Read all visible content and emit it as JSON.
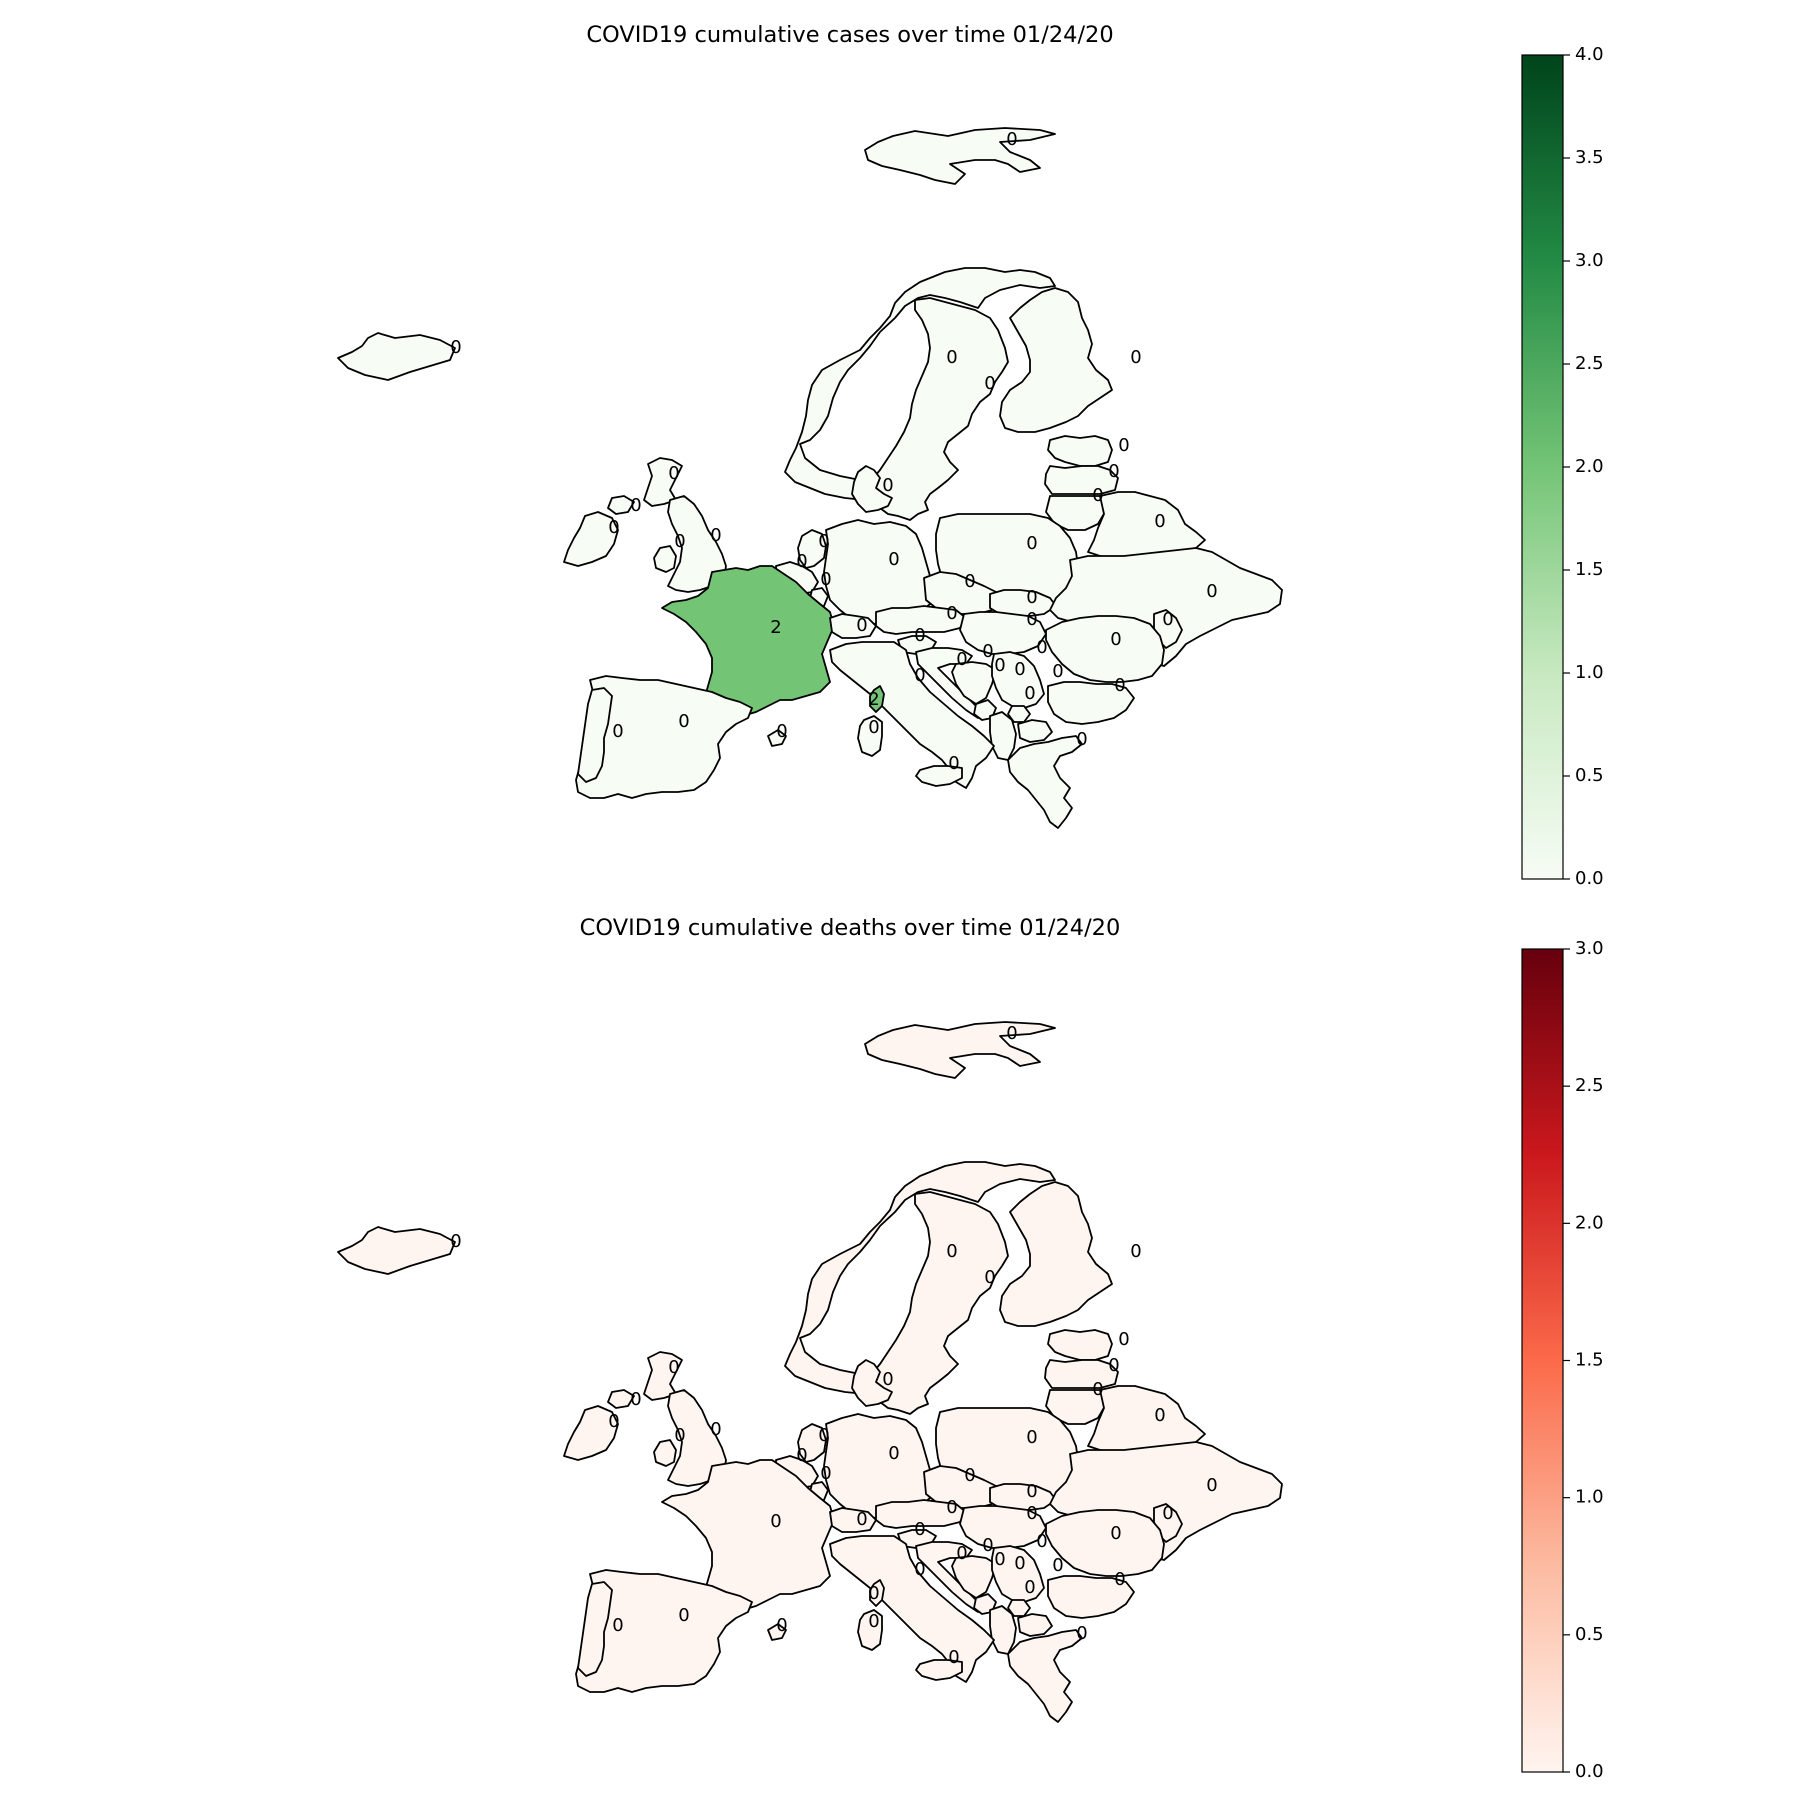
{
  "maps": [
    {
      "title": "COVID19 cumulative cases over time 01/24/20",
      "metric": "cases",
      "colorbar": {
        "min": 0.0,
        "max": 4.0,
        "ticks": [
          "0.0",
          "0.5",
          "1.0",
          "1.5",
          "2.0",
          "2.5",
          "3.0",
          "3.5",
          "4.0"
        ],
        "colors": [
          "#f7fcf5",
          "#c7e9c0",
          "#74c476",
          "#238b45",
          "#00441b"
        ]
      },
      "regions": [
        {
          "name": "Iceland",
          "value": 0
        },
        {
          "name": "Svalbard",
          "value": 0
        },
        {
          "name": "Norway",
          "value": 0
        },
        {
          "name": "Sweden",
          "value": 0
        },
        {
          "name": "Finland",
          "value": 0
        },
        {
          "name": "Estonia",
          "value": 0
        },
        {
          "name": "Latvia",
          "value": 0
        },
        {
          "name": "Lithuania",
          "value": 0
        },
        {
          "name": "Belarus",
          "value": 0
        },
        {
          "name": "Denmark",
          "value": 0
        },
        {
          "name": "Ireland",
          "value": 0
        },
        {
          "name": "Northern Ireland",
          "value": 0
        },
        {
          "name": "Scotland",
          "value": 0
        },
        {
          "name": "United Kingdom",
          "value": 0
        },
        {
          "name": "Wales",
          "value": 0
        },
        {
          "name": "Netherlands",
          "value": 0
        },
        {
          "name": "Belgium",
          "value": 0
        },
        {
          "name": "Luxembourg",
          "value": 0
        },
        {
          "name": "Germany",
          "value": 0
        },
        {
          "name": "Poland",
          "value": 0
        },
        {
          "name": "Czechia",
          "value": 0
        },
        {
          "name": "Slovakia",
          "value": 0
        },
        {
          "name": "Ukraine",
          "value": 0
        },
        {
          "name": "France",
          "value": 2
        },
        {
          "name": "Switzerland",
          "value": 0
        },
        {
          "name": "Austria",
          "value": 0
        },
        {
          "name": "Hungary",
          "value": 0
        },
        {
          "name": "Moldova",
          "value": 0
        },
        {
          "name": "Romania",
          "value": 0
        },
        {
          "name": "Slovenia",
          "value": 0
        },
        {
          "name": "Croatia",
          "value": 0
        },
        {
          "name": "Bosnia",
          "value": 0
        },
        {
          "name": "Serbia",
          "value": 0
        },
        {
          "name": "Montenegro",
          "value": 0
        },
        {
          "name": "Kosovo",
          "value": 0
        },
        {
          "name": "North Macedonia",
          "value": 0
        },
        {
          "name": "Albania",
          "value": 0
        },
        {
          "name": "Bulgaria",
          "value": 0
        },
        {
          "name": "Greece",
          "value": 0
        },
        {
          "name": "Italy",
          "value": 0
        },
        {
          "name": "Corsica",
          "value": 2
        },
        {
          "name": "Sardinia",
          "value": 0
        },
        {
          "name": "Sicily",
          "value": 0
        },
        {
          "name": "Spain",
          "value": 0
        },
        {
          "name": "Portugal",
          "value": 0
        },
        {
          "name": "Balearic Islands",
          "value": 0
        }
      ]
    },
    {
      "title": "COVID19 cumulative deaths over time 01/24/20",
      "metric": "deaths",
      "colorbar": {
        "min": 0.0,
        "max": 3.0,
        "ticks": [
          "0.0",
          "0.5",
          "1.0",
          "1.5",
          "2.0",
          "2.5",
          "3.0"
        ],
        "colors": [
          "#fff5f0",
          "#fcbba1",
          "#fb6a4a",
          "#cb181d",
          "#67000d"
        ]
      },
      "regions": [
        {
          "name": "Iceland",
          "value": 0
        },
        {
          "name": "Svalbard",
          "value": 0
        },
        {
          "name": "Norway",
          "value": 0
        },
        {
          "name": "Sweden",
          "value": 0
        },
        {
          "name": "Finland",
          "value": 0
        },
        {
          "name": "Estonia",
          "value": 0
        },
        {
          "name": "Latvia",
          "value": 0
        },
        {
          "name": "Lithuania",
          "value": 0
        },
        {
          "name": "Belarus",
          "value": 0
        },
        {
          "name": "Denmark",
          "value": 0
        },
        {
          "name": "Ireland",
          "value": 0
        },
        {
          "name": "Northern Ireland",
          "value": 0
        },
        {
          "name": "Scotland",
          "value": 0
        },
        {
          "name": "United Kingdom",
          "value": 0
        },
        {
          "name": "Wales",
          "value": 0
        },
        {
          "name": "Netherlands",
          "value": 0
        },
        {
          "name": "Belgium",
          "value": 0
        },
        {
          "name": "Luxembourg",
          "value": 0
        },
        {
          "name": "Germany",
          "value": 0
        },
        {
          "name": "Poland",
          "value": 0
        },
        {
          "name": "Czechia",
          "value": 0
        },
        {
          "name": "Slovakia",
          "value": 0
        },
        {
          "name": "Ukraine",
          "value": 0
        },
        {
          "name": "France",
          "value": 0
        },
        {
          "name": "Switzerland",
          "value": 0
        },
        {
          "name": "Austria",
          "value": 0
        },
        {
          "name": "Hungary",
          "value": 0
        },
        {
          "name": "Moldova",
          "value": 0
        },
        {
          "name": "Romania",
          "value": 0
        },
        {
          "name": "Slovenia",
          "value": 0
        },
        {
          "name": "Croatia",
          "value": 0
        },
        {
          "name": "Bosnia",
          "value": 0
        },
        {
          "name": "Serbia",
          "value": 0
        },
        {
          "name": "Montenegro",
          "value": 0
        },
        {
          "name": "Kosovo",
          "value": 0
        },
        {
          "name": "North Macedonia",
          "value": 0
        },
        {
          "name": "Albania",
          "value": 0
        },
        {
          "name": "Bulgaria",
          "value": 0
        },
        {
          "name": "Greece",
          "value": 0
        },
        {
          "name": "Italy",
          "value": 0
        },
        {
          "name": "Corsica",
          "value": 0
        },
        {
          "name": "Sardinia",
          "value": 0
        },
        {
          "name": "Sicily",
          "value": 0
        },
        {
          "name": "Spain",
          "value": 0
        },
        {
          "name": "Portugal",
          "value": 0
        },
        {
          "name": "Balearic Islands",
          "value": 0
        }
      ]
    }
  ]
}
